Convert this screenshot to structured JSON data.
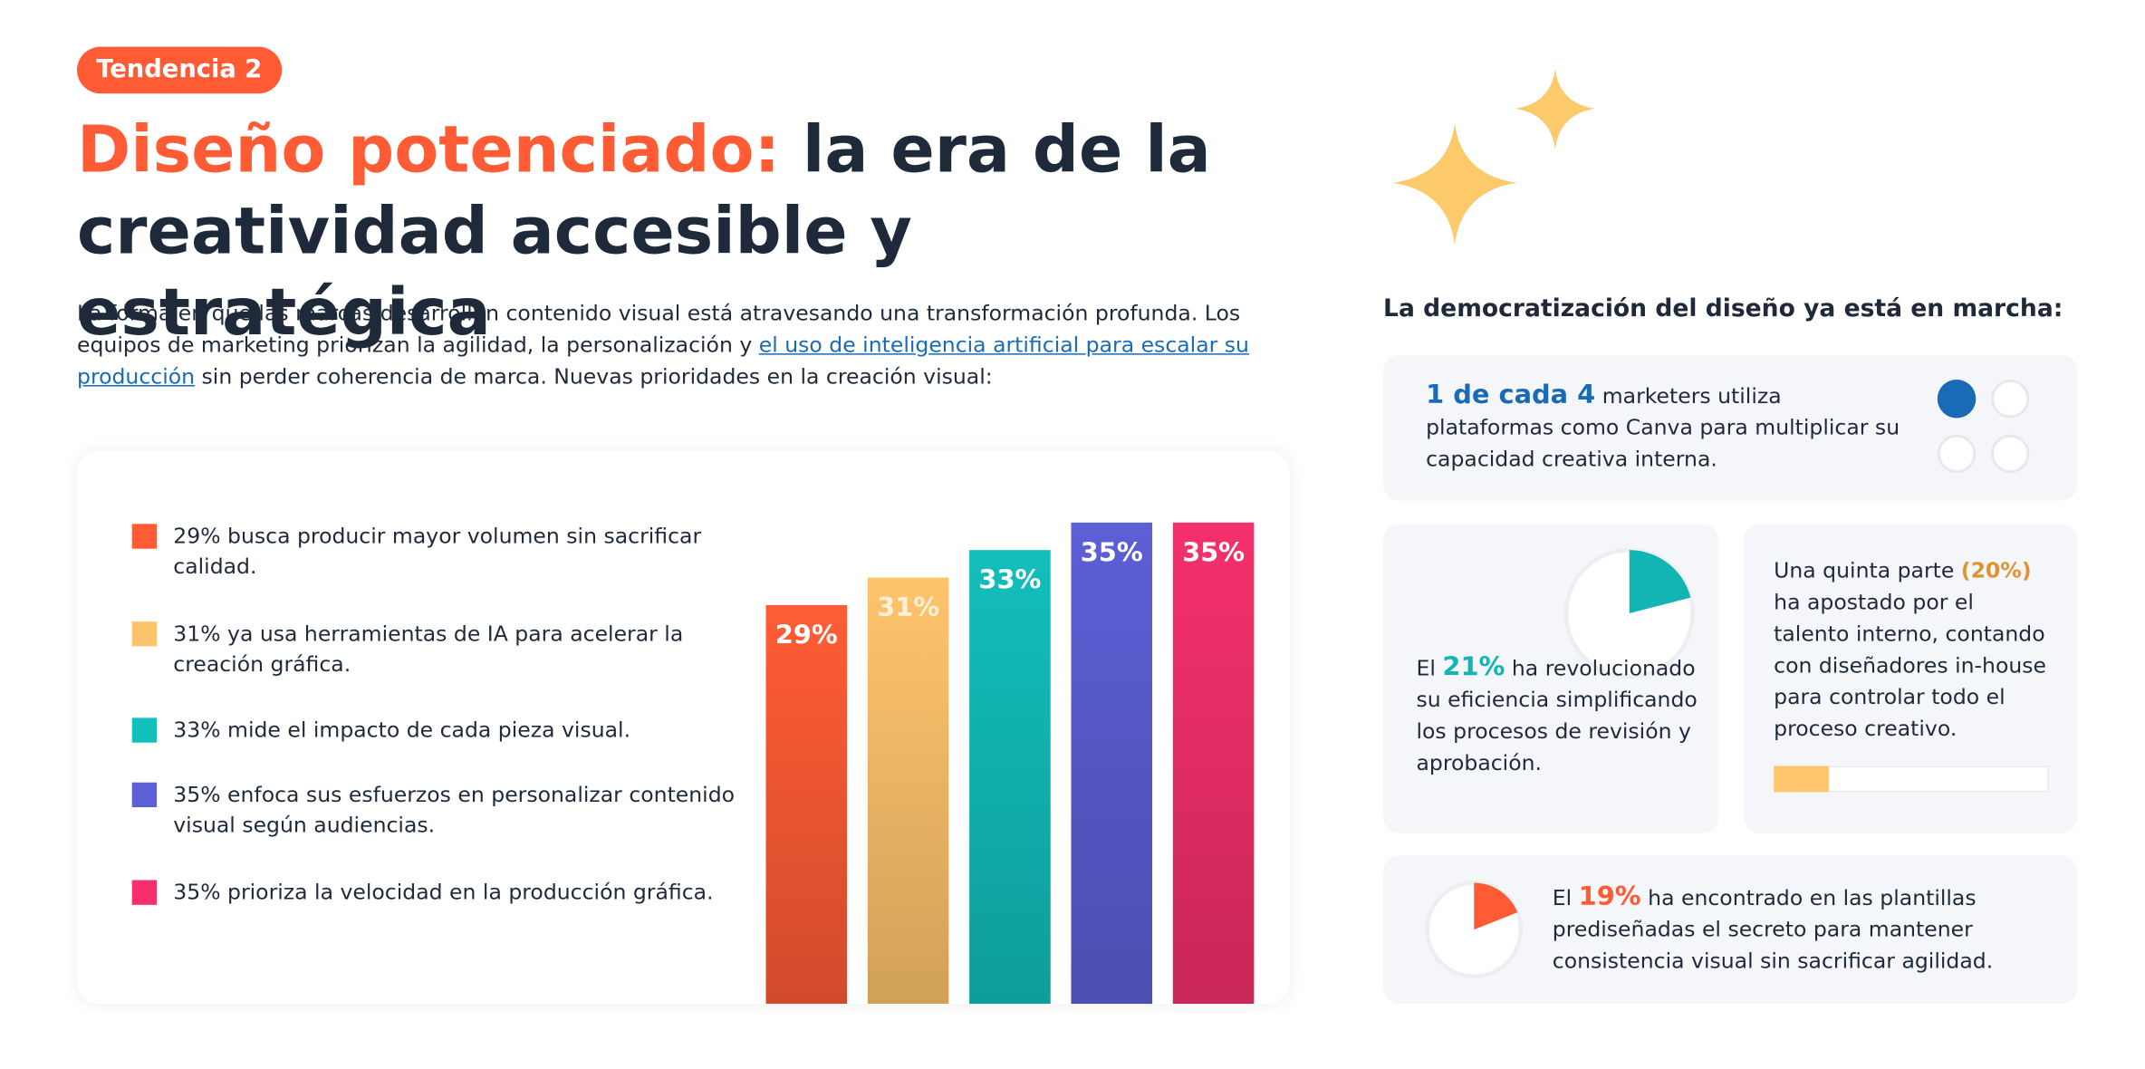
{
  "badge": "Tendencia 2",
  "title_highlight": "Diseño potenciado:",
  "title_rest": "la era de la creatividad accesible y estratégica",
  "intro": {
    "before": "La forma en que las marcas desarrollan contenido visual está atravesando una transformación profunda. Los equipos de marketing priorizan la agilidad, la personalización y ",
    "link": "el uso de inteligencia artificial para escalar su producción",
    "after": " sin perder coherencia de marca. Nuevas prioridades en la creación visual:"
  },
  "chart_data": {
    "type": "bar",
    "categories": [
      "29% busca producir mayor volumen sin sacrificar calidad.",
      "31% ya usa herramientas de IA para acelerar la creación gráfica.",
      "33% mide el impacto de cada pieza visual.",
      "35% enfoca sus esfuerzos en personalizar contenido visual según audiencias.",
      "35% prioriza la velocidad en la producción gráfica."
    ],
    "values": [
      29,
      31,
      33,
      35,
      35
    ],
    "value_labels": [
      "29%",
      "31%",
      "33%",
      "35%",
      "35%"
    ],
    "colors": [
      "#ff5c35",
      "#ffc46c",
      "#12bfbb",
      "#5c5fd6",
      "#f5306c"
    ],
    "ylim": [
      0,
      35
    ]
  },
  "side_title": "La democratización del diseño ya está en marcha:",
  "card_canva": {
    "highlight": "1 de cada 4",
    "text": " marketers utiliza plataformas como Canva para multiplicar su capacidad creativa interna."
  },
  "card_eficiencia": {
    "before": "El ",
    "value": 21,
    "value_label": "21%",
    "after": " ha revolucionado su eficiencia simplificando los procesos de revisión y aprobación.",
    "color": "#12b5b3"
  },
  "card_talento": {
    "before": "Una quinta parte ",
    "value": 20,
    "value_label": "(20%)",
    "after": " ha apostado por el talento interno, contando con diseñadores in-house para controlar todo el proceso creativo.",
    "color": "#ffc46c"
  },
  "card_plantillas": {
    "before": "El ",
    "value": 19,
    "value_label": "19%",
    "after": " ha encontrado en las plantillas prediseñadas el secreto para mantener consistencia visual sin sacrificar agilidad.",
    "color": "#ff5c35"
  }
}
